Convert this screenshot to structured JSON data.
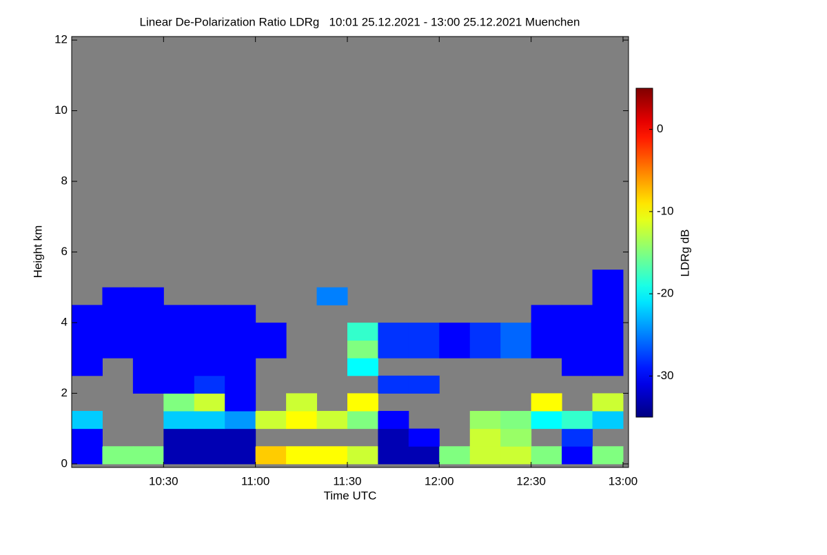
{
  "chart_data": {
    "type": "heatmap",
    "title": "Linear De-Polarization Ratio LDRg   10:01 25.12.2021 - 13:00 25.12.2021 Muenchen",
    "x_label": "Time UTC",
    "y_label": "Height km",
    "colorbar_label": "LDRg dB",
    "colormap": "jet",
    "background": "#808080",
    "xlim": [
      10.0,
      13.03
    ],
    "xticks": [
      {
        "value": 10.5,
        "label": "10:30"
      },
      {
        "value": 11.0,
        "label": "11:00"
      },
      {
        "value": 11.5,
        "label": "11:30"
      },
      {
        "value": 12.0,
        "label": "12:00"
      },
      {
        "value": 12.5,
        "label": "12:30"
      },
      {
        "value": 13.0,
        "label": "13:00"
      }
    ],
    "ylim": [
      -0.1,
      12.1
    ],
    "yticks": [
      0,
      2,
      4,
      6,
      8,
      10,
      12
    ],
    "zlim": [
      -35,
      5
    ],
    "zticks": [
      0,
      -10,
      -20,
      -30
    ],
    "x_edges": [
      10.0,
      10.1667,
      10.3333,
      10.5,
      10.6667,
      10.8333,
      11.0,
      11.1667,
      11.3333,
      11.5,
      11.6667,
      11.8333,
      12.0,
      12.1667,
      12.3333,
      12.5,
      12.6667,
      12.8333,
      13.0
    ],
    "y_edges": [
      0,
      0.5,
      1,
      1.5,
      2,
      2.5,
      3,
      3.5,
      4,
      4.5,
      5,
      5.5
    ],
    "z": [
      [
        -30,
        -15,
        -15,
        -33,
        -33,
        -33,
        -8,
        -10,
        -10,
        -12,
        -33,
        -33,
        -15,
        -12,
        -12,
        -15,
        -30,
        -15
      ],
      [
        -30,
        null,
        null,
        -33,
        -33,
        -33,
        null,
        null,
        null,
        null,
        -33,
        -30,
        null,
        -12,
        -14,
        null,
        -28,
        null
      ],
      [
        -22,
        null,
        null,
        -22,
        -22,
        -24,
        -12,
        -10,
        -12,
        -15,
        -30,
        null,
        null,
        -14,
        -15,
        -20,
        -18,
        -22
      ],
      [
        null,
        null,
        null,
        -15,
        -12,
        -30,
        null,
        -12,
        null,
        -10,
        null,
        null,
        null,
        null,
        null,
        -10,
        null,
        -12
      ],
      [
        null,
        null,
        -30,
        -30,
        -28,
        -30,
        null,
        null,
        null,
        null,
        -28,
        -28,
        null,
        null,
        null,
        null,
        null,
        null
      ],
      [
        -30,
        null,
        -30,
        -30,
        -30,
        -30,
        null,
        null,
        null,
        -20,
        null,
        null,
        null,
        null,
        null,
        null,
        -30,
        -30
      ],
      [
        -30,
        -30,
        -30,
        -30,
        -30,
        -30,
        -30,
        null,
        null,
        -15,
        -28,
        -28,
        -30,
        -28,
        -26,
        -30,
        -30,
        -30
      ],
      [
        -30,
        -30,
        -30,
        -30,
        -30,
        -30,
        -30,
        null,
        null,
        -18,
        -28,
        -28,
        -30,
        -28,
        -26,
        -30,
        -30,
        -30
      ],
      [
        -30,
        -30,
        -30,
        -30,
        -30,
        -30,
        null,
        null,
        null,
        null,
        null,
        null,
        null,
        null,
        null,
        -30,
        -30,
        -30
      ],
      [
        null,
        -30,
        -30,
        null,
        null,
        null,
        null,
        null,
        -25,
        null,
        null,
        null,
        null,
        null,
        null,
        null,
        null,
        -30
      ],
      [
        null,
        null,
        null,
        null,
        null,
        null,
        null,
        null,
        null,
        null,
        null,
        null,
        null,
        null,
        null,
        null,
        null,
        -30
      ]
    ]
  }
}
